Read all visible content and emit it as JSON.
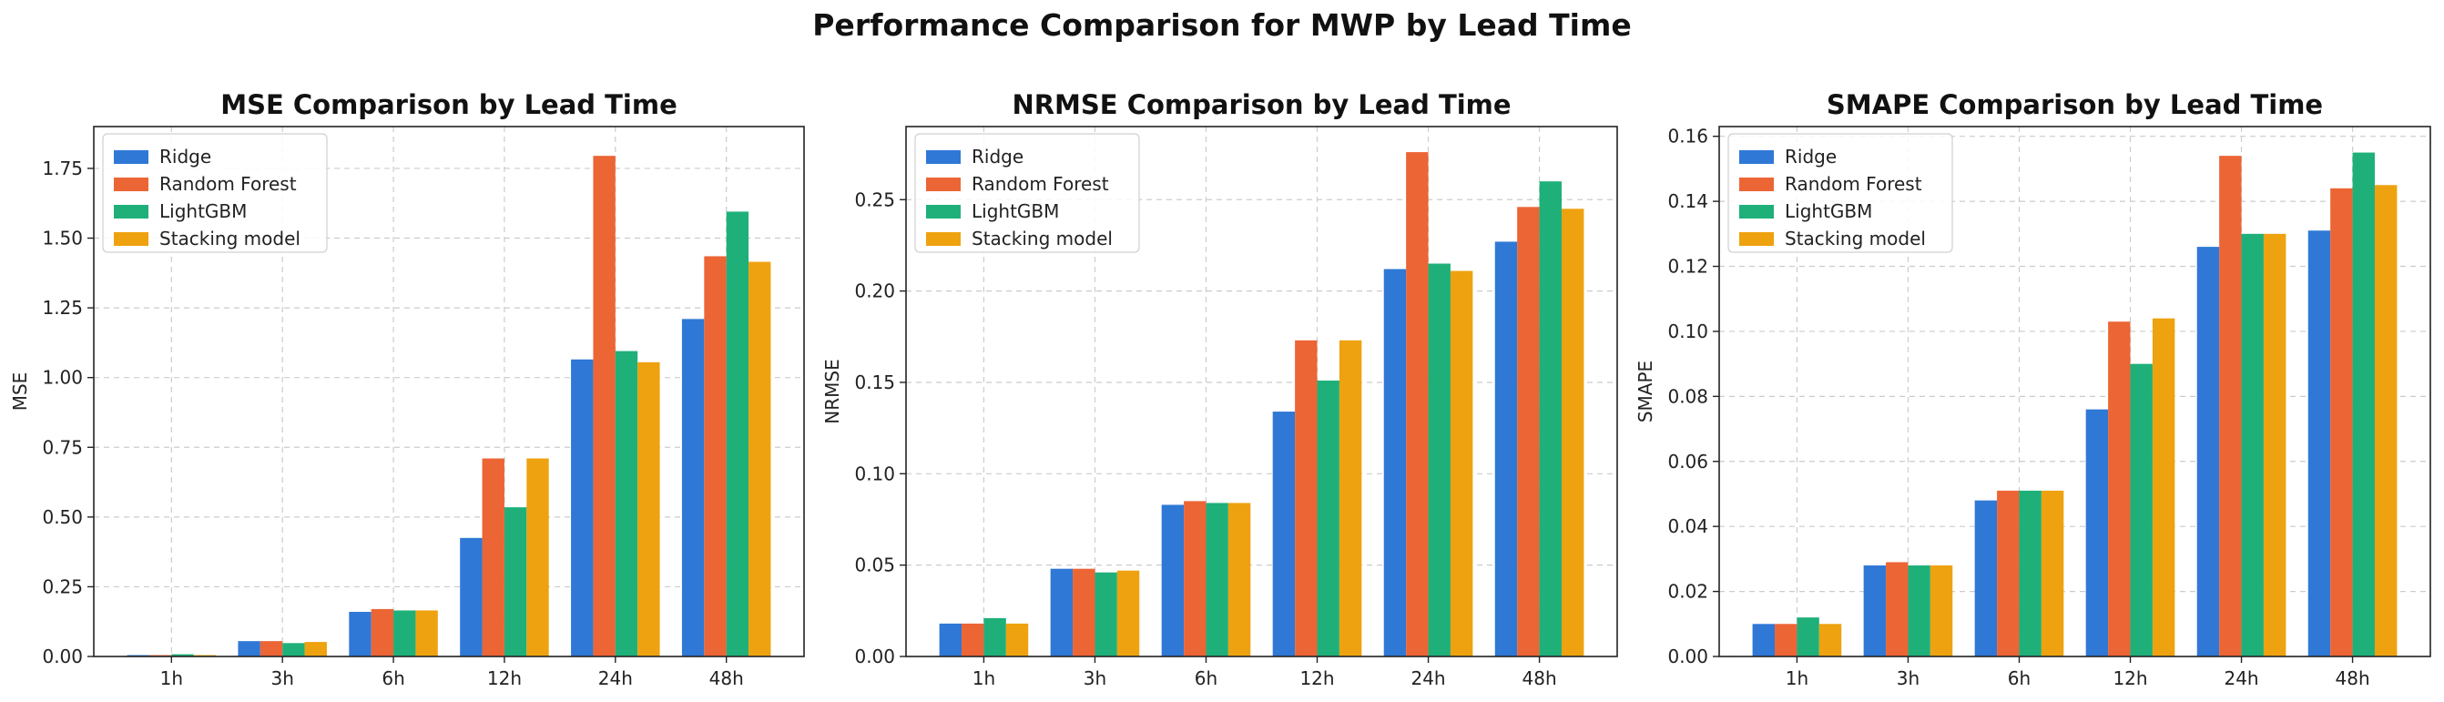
{
  "suptitle": "Performance Comparison for MWP by Lead Time",
  "colors": {
    "Ridge": "#2f78d6",
    "Random Forest": "#ec6535",
    "LightGBM": "#1fb07a",
    "Stacking model": "#eea20f"
  },
  "chart_data": [
    {
      "type": "bar",
      "title": "MSE Comparison by Lead Time",
      "xlabel": "",
      "ylabel": "MSE",
      "categories": [
        "1h",
        "3h",
        "6h",
        "12h",
        "24h",
        "48h"
      ],
      "ylim": [
        0,
        1.9
      ],
      "yticks": [
        "0.00",
        "0.25",
        "0.50",
        "0.75",
        "1.00",
        "1.25",
        "1.50",
        "1.75"
      ],
      "grid": true,
      "legend": "top-left",
      "series": [
        {
          "name": "Ridge",
          "values": [
            0.005,
            0.055,
            0.16,
            0.425,
            1.065,
            1.21
          ]
        },
        {
          "name": "Random Forest",
          "values": [
            0.005,
            0.055,
            0.17,
            0.71,
            1.795,
            1.435
          ]
        },
        {
          "name": "LightGBM",
          "values": [
            0.008,
            0.048,
            0.165,
            0.535,
            1.095,
            1.595
          ]
        },
        {
          "name": "Stacking model",
          "values": [
            0.005,
            0.052,
            0.165,
            0.71,
            1.055,
            1.415
          ]
        }
      ]
    },
    {
      "type": "bar",
      "title": "NRMSE Comparison by Lead Time",
      "xlabel": "",
      "ylabel": "NRMSE",
      "categories": [
        "1h",
        "3h",
        "6h",
        "12h",
        "24h",
        "48h"
      ],
      "ylim": [
        0,
        0.29
      ],
      "yticks": [
        "0.00",
        "0.05",
        "0.10",
        "0.15",
        "0.20",
        "0.25"
      ],
      "grid": true,
      "legend": "top-left",
      "series": [
        {
          "name": "Ridge",
          "values": [
            0.018,
            0.048,
            0.083,
            0.134,
            0.212,
            0.227
          ]
        },
        {
          "name": "Random Forest",
          "values": [
            0.018,
            0.048,
            0.085,
            0.173,
            0.276,
            0.246
          ]
        },
        {
          "name": "LightGBM",
          "values": [
            0.021,
            0.046,
            0.084,
            0.151,
            0.215,
            0.26
          ]
        },
        {
          "name": "Stacking model",
          "values": [
            0.018,
            0.047,
            0.084,
            0.173,
            0.211,
            0.245
          ]
        }
      ]
    },
    {
      "type": "bar",
      "title": "SMAPE Comparison by Lead Time",
      "xlabel": "",
      "ylabel": "SMAPE",
      "categories": [
        "1h",
        "3h",
        "6h",
        "12h",
        "24h",
        "48h"
      ],
      "ylim": [
        0,
        0.163
      ],
      "yticks": [
        "0.00",
        "0.02",
        "0.04",
        "0.06",
        "0.08",
        "0.10",
        "0.12",
        "0.14",
        "0.16"
      ],
      "grid": true,
      "legend": "top-left",
      "series": [
        {
          "name": "Ridge",
          "values": [
            0.01,
            0.028,
            0.048,
            0.076,
            0.126,
            0.131
          ]
        },
        {
          "name": "Random Forest",
          "values": [
            0.01,
            0.029,
            0.051,
            0.103,
            0.154,
            0.144
          ]
        },
        {
          "name": "LightGBM",
          "values": [
            0.012,
            0.028,
            0.051,
            0.09,
            0.13,
            0.155
          ]
        },
        {
          "name": "Stacking model",
          "values": [
            0.01,
            0.028,
            0.051,
            0.104,
            0.13,
            0.145
          ]
        }
      ]
    }
  ]
}
